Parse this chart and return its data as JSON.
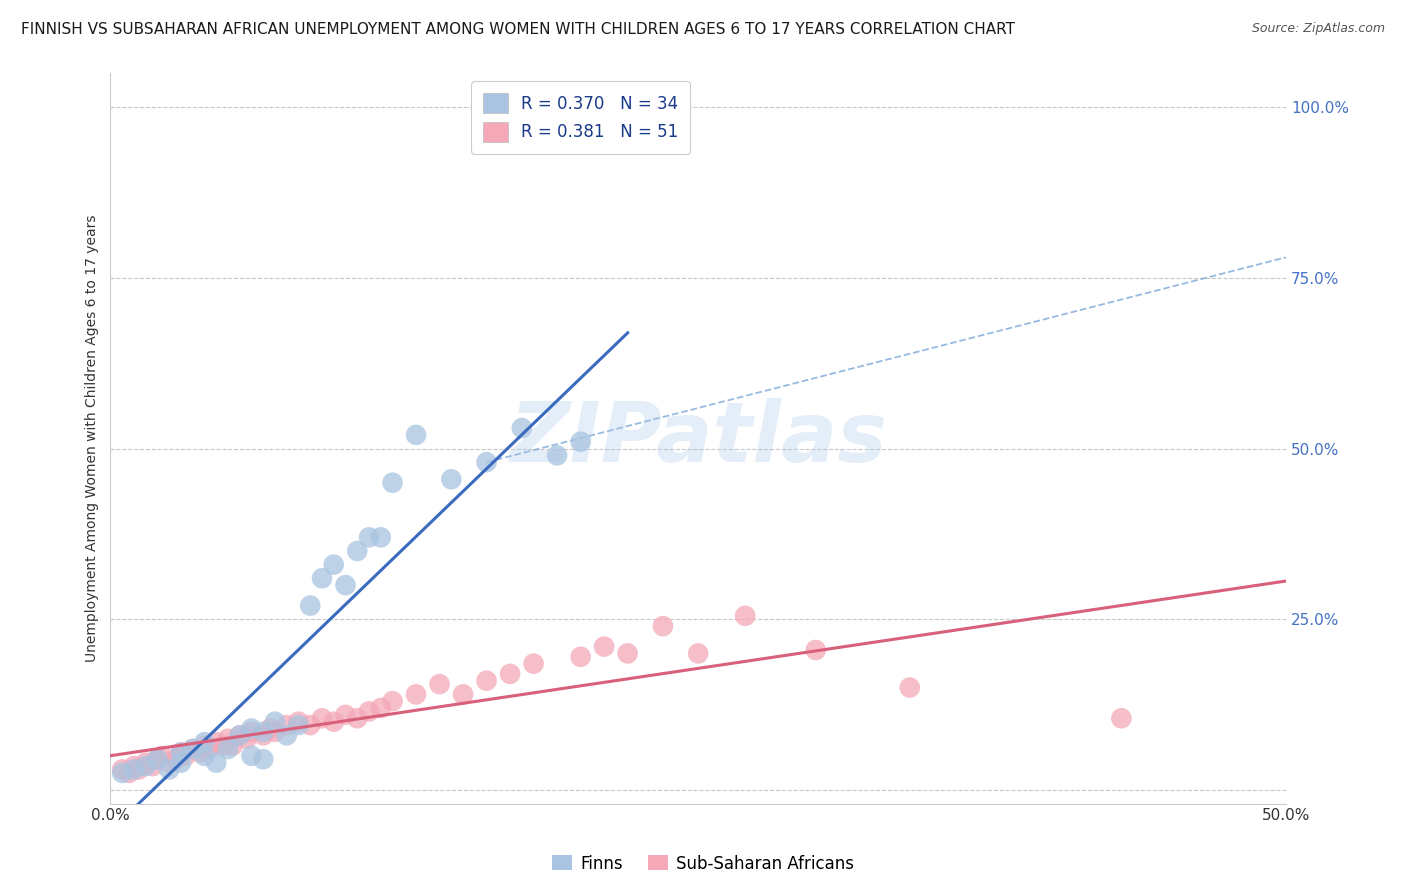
{
  "title": "FINNISH VS SUBSAHARAN AFRICAN UNEMPLOYMENT AMONG WOMEN WITH CHILDREN AGES 6 TO 17 YEARS CORRELATION CHART",
  "source": "Source: ZipAtlas.com",
  "ylabel": "Unemployment Among Women with Children Ages 6 to 17 years",
  "xlim": [
    0.0,
    0.5
  ],
  "ylim": [
    -0.02,
    1.05
  ],
  "xticks": [
    0.0,
    0.1,
    0.2,
    0.3,
    0.4,
    0.5
  ],
  "xtick_labels": [
    "0.0%",
    "",
    "",
    "",
    "",
    "50.0%"
  ],
  "yticks": [
    0.0,
    0.25,
    0.5,
    0.75,
    1.0
  ],
  "ytick_labels": [
    "",
    "25.0%",
    "50.0%",
    "75.0%",
    "100.0%"
  ],
  "legend_R_finns": "0.370",
  "legend_N_finns": "34",
  "legend_R_ssa": "0.381",
  "legend_N_ssa": "51",
  "finns_color": "#a8c4e0",
  "ssa_color": "#f4a8b8",
  "finns_line_color": "#3a6bbf",
  "ssa_line_color": "#d9607a",
  "watermark": "ZIPatlas",
  "finns_x": [
    0.005,
    0.01,
    0.015,
    0.02,
    0.025,
    0.03,
    0.03,
    0.035,
    0.04,
    0.04,
    0.045,
    0.05,
    0.055,
    0.06,
    0.06,
    0.065,
    0.065,
    0.07,
    0.075,
    0.08,
    0.085,
    0.09,
    0.095,
    0.1,
    0.105,
    0.11,
    0.115,
    0.12,
    0.13,
    0.145,
    0.16,
    0.175,
    0.19,
    0.2
  ],
  "finns_y": [
    0.025,
    0.03,
    0.035,
    0.045,
    0.03,
    0.04,
    0.055,
    0.06,
    0.05,
    0.07,
    0.04,
    0.06,
    0.08,
    0.05,
    0.09,
    0.085,
    0.045,
    0.1,
    0.08,
    0.095,
    0.27,
    0.31,
    0.33,
    0.3,
    0.35,
    0.37,
    0.37,
    0.45,
    0.52,
    0.455,
    0.48,
    0.53,
    0.49,
    0.51
  ],
  "ssa_x": [
    0.005,
    0.008,
    0.01,
    0.012,
    0.015,
    0.018,
    0.02,
    0.022,
    0.025,
    0.028,
    0.03,
    0.032,
    0.035,
    0.038,
    0.04,
    0.042,
    0.045,
    0.048,
    0.05,
    0.052,
    0.055,
    0.058,
    0.06,
    0.065,
    0.068,
    0.07,
    0.075,
    0.08,
    0.085,
    0.09,
    0.095,
    0.1,
    0.105,
    0.11,
    0.115,
    0.12,
    0.13,
    0.14,
    0.15,
    0.16,
    0.17,
    0.18,
    0.2,
    0.21,
    0.22,
    0.235,
    0.25,
    0.27,
    0.3,
    0.34,
    0.43
  ],
  "ssa_y": [
    0.03,
    0.025,
    0.035,
    0.03,
    0.04,
    0.035,
    0.045,
    0.05,
    0.04,
    0.045,
    0.055,
    0.05,
    0.06,
    0.055,
    0.065,
    0.06,
    0.07,
    0.065,
    0.075,
    0.065,
    0.08,
    0.075,
    0.085,
    0.08,
    0.09,
    0.085,
    0.095,
    0.1,
    0.095,
    0.105,
    0.1,
    0.11,
    0.105,
    0.115,
    0.12,
    0.13,
    0.14,
    0.155,
    0.14,
    0.16,
    0.17,
    0.185,
    0.195,
    0.21,
    0.2,
    0.24,
    0.2,
    0.255,
    0.205,
    0.15,
    0.105
  ],
  "background_color": "#ffffff",
  "grid_color": "#c8c8c8",
  "title_fontsize": 11,
  "axis_fontsize": 10,
  "tick_fontsize": 11
}
